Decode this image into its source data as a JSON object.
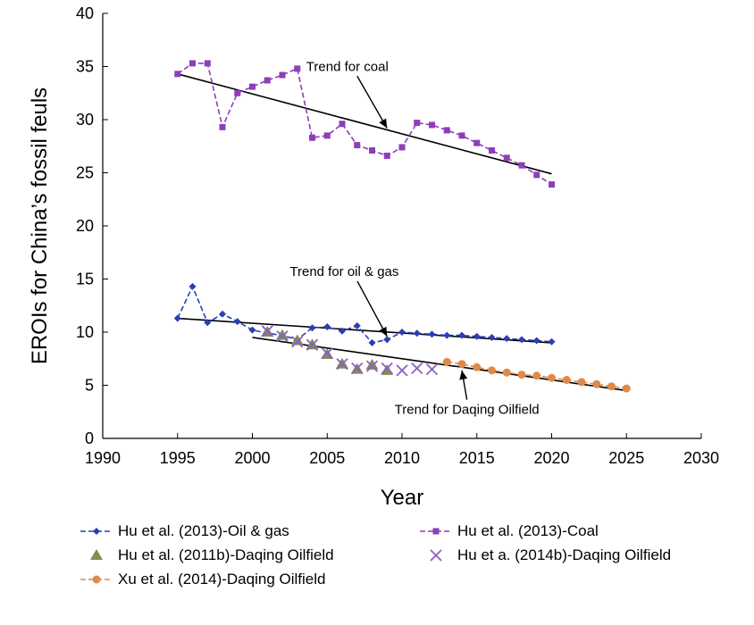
{
  "chart_data": {
    "type": "line",
    "xlabel": "Year",
    "ylabel": "EROIs for China’s fossil feuls",
    "xlim": [
      1990,
      2030
    ],
    "ylim": [
      0,
      40
    ],
    "xticks": [
      "1990",
      "1995",
      "2000",
      "2005",
      "2010",
      "2015",
      "2020",
      "2025",
      "2030"
    ],
    "yticks": [
      "0",
      "5",
      "10",
      "15",
      "20",
      "25",
      "30",
      "35",
      "40"
    ],
    "grid": false,
    "legend_position": "bottom",
    "series": [
      {
        "name": "Hu et al. (2013)-Oil & gas",
        "style": "dashed-diamond",
        "color": "#2a3fb5",
        "x": [
          1995,
          1996,
          1997,
          1998,
          1999,
          2000,
          2001,
          2002,
          2003,
          2004,
          2005,
          2006,
          2007,
          2008,
          2009,
          2010,
          2011,
          2012,
          2013,
          2014,
          2015,
          2016,
          2017,
          2018,
          2019,
          2020
        ],
        "y": [
          11.3,
          14.3,
          10.9,
          11.7,
          11.0,
          10.2,
          9.9,
          9.7,
          9.3,
          10.4,
          10.5,
          10.1,
          10.6,
          9.0,
          9.3,
          10.0,
          9.9,
          9.8,
          9.7,
          9.7,
          9.6,
          9.5,
          9.4,
          9.3,
          9.2,
          9.1
        ]
      },
      {
        "name": "Hu et al. (2013)-Coal",
        "style": "dashed-square",
        "color": "#8b3fb8",
        "x": [
          1995,
          1996,
          1997,
          1998,
          1999,
          2000,
          2001,
          2002,
          2003,
          2004,
          2005,
          2006,
          2007,
          2008,
          2009,
          2010,
          2011,
          2012,
          2013,
          2014,
          2015,
          2016,
          2017,
          2018,
          2019,
          2020
        ],
        "y": [
          34.3,
          35.3,
          35.3,
          29.3,
          32.5,
          33.1,
          33.7,
          34.2,
          34.8,
          28.3,
          28.5,
          29.6,
          27.6,
          27.1,
          26.6,
          27.4,
          29.7,
          29.5,
          29.0,
          28.5,
          27.8,
          27.1,
          26.4,
          25.7,
          24.8,
          23.9
        ]
      },
      {
        "name": "Hu et al. (2011b)-Daqing Oilfield",
        "style": "triangle",
        "color": "#7f8f4f",
        "x": [
          2001,
          2002,
          2003,
          2004,
          2005,
          2006,
          2007,
          2008,
          2009
        ],
        "y": [
          10.0,
          9.7,
          9.2,
          8.8,
          7.9,
          7.0,
          6.5,
          6.9,
          6.4
        ]
      },
      {
        "name": "Hu et a. (2014b)-Daqing Oilfield",
        "style": "cross",
        "color": "#8b5fc6",
        "x": [
          2001,
          2002,
          2003,
          2004,
          2005,
          2006,
          2007,
          2008,
          2009,
          2010,
          2011,
          2012
        ],
        "y": [
          10.1,
          9.6,
          9.1,
          8.8,
          8.0,
          7.0,
          6.6,
          6.8,
          6.6,
          6.4,
          6.6,
          6.5
        ]
      },
      {
        "name": "Xu et al. (2014)-Daqing Oilfield",
        "style": "dashed-circle",
        "color": "#e08a4a",
        "x": [
          2013,
          2014,
          2015,
          2016,
          2017,
          2018,
          2019,
          2020,
          2021,
          2022,
          2023,
          2024,
          2025
        ],
        "y": [
          7.2,
          7.0,
          6.7,
          6.4,
          6.2,
          6.0,
          5.9,
          5.7,
          5.5,
          5.3,
          5.1,
          4.9,
          4.7
        ]
      }
    ],
    "trendlines": [
      {
        "label": "Trend for coal",
        "x": [
          1995,
          2020
        ],
        "y": [
          34.3,
          24.9
        ]
      },
      {
        "label": "Trend for oil & gas",
        "x": [
          1995,
          2020
        ],
        "y": [
          11.3,
          9.0
        ]
      },
      {
        "label": "Trend for Daqing Oilfield",
        "x": [
          2000,
          2025
        ],
        "y": [
          9.5,
          4.5
        ]
      }
    ],
    "annotations": [
      {
        "text": "Trend for coal",
        "anchor_year": 2009,
        "anchor_value": 29.2,
        "label_year": 2003.6,
        "label_value": 34.6
      },
      {
        "text": "Trend for oil & gas",
        "anchor_year": 2009,
        "anchor_value": 9.6,
        "label_year": 2002.5,
        "label_value": 15.3
      },
      {
        "text": "Trend for Daqing Oilfield",
        "anchor_year": 2014,
        "anchor_value": 6.4,
        "label_year": 2009.5,
        "label_value": 2.3
      }
    ]
  }
}
